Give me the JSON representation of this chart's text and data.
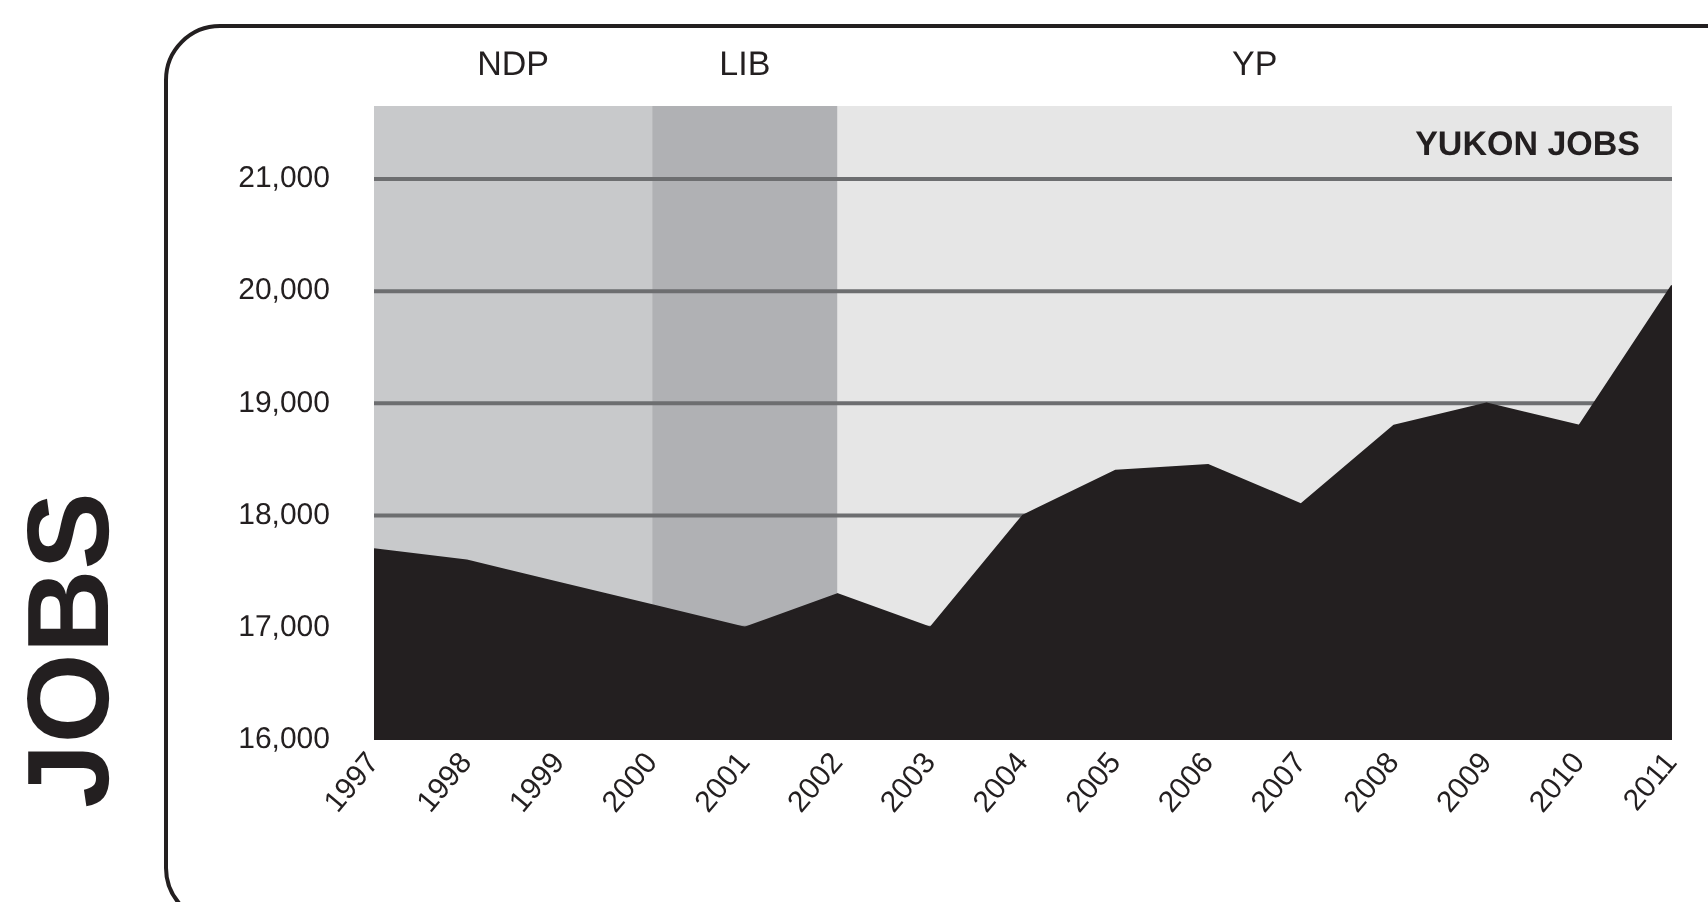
{
  "chart_data": {
    "type": "area",
    "title": "YUKON JOBS",
    "ylabel": "JOBS",
    "x": [
      1997,
      1998,
      1999,
      2000,
      2001,
      2002,
      2003,
      2004,
      2005,
      2006,
      2007,
      2008,
      2009,
      2010,
      2011
    ],
    "series": [
      {
        "color": "#231f20",
        "values": [
          17700,
          17600,
          17400,
          17200,
          17000,
          17300,
          17000,
          18000,
          18400,
          18450,
          18100,
          18800,
          19000,
          18800,
          20050
        ]
      }
    ],
    "xlim": [
      1997,
      2011
    ],
    "xticks": [
      1997,
      1998,
      1999,
      2000,
      2001,
      2002,
      2003,
      2004,
      2005,
      2006,
      2007,
      2008,
      2009,
      2010,
      2011
    ],
    "ylim": [
      16000,
      21650
    ],
    "yticks": [
      {
        "value": 16000,
        "label": "16,000"
      },
      {
        "value": 17000,
        "label": "17,000"
      },
      {
        "value": 18000,
        "label": "18,000"
      },
      {
        "value": 19000,
        "label": "19,000"
      },
      {
        "value": 20000,
        "label": "20,000"
      },
      {
        "value": 21000,
        "label": "21,000"
      }
    ],
    "bands": [
      {
        "axis": "x",
        "from": 1997,
        "to": 2000,
        "label": "NDP",
        "color": "#c8c9cb"
      },
      {
        "axis": "x",
        "from": 2000,
        "to": 2002,
        "label": "LIB",
        "color": "#b0b1b4"
      },
      {
        "axis": "x",
        "from": 2002,
        "to": 2011,
        "label": "YP",
        "color": "#e6e6e6"
      }
    ],
    "grid": "y",
    "legend": false,
    "marker": "none"
  }
}
